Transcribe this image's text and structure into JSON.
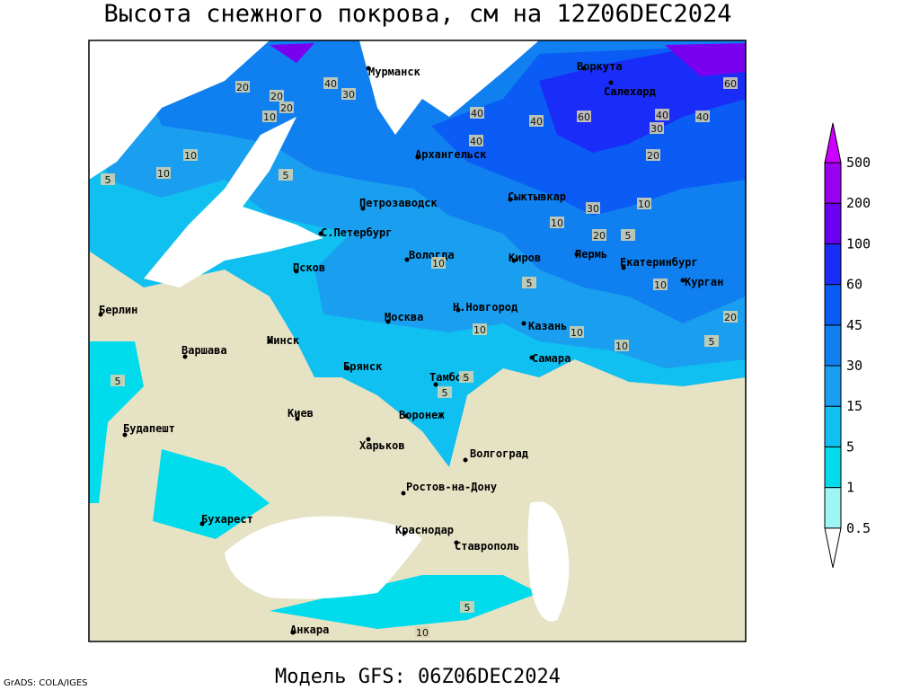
{
  "header": {
    "title": "Высота снежного покрова, см на 12Z06DEC2024"
  },
  "footer": {
    "model": "Модель GFS: 06Z06DEC2024",
    "credit": "GrADS: COLA/IGES"
  },
  "colorbar": {
    "levels": [
      0.5,
      1,
      5,
      15,
      30,
      45,
      60,
      100,
      200,
      500
    ],
    "colors": [
      "#ffffff",
      "#9ef5f5",
      "#00dcec",
      "#10c0f0",
      "#1a9ef0",
      "#1080f0",
      "#0a5cf4",
      "#1a2cf8",
      "#6a00f0",
      "#9a00f0",
      "#cc00ff"
    ]
  },
  "map": {
    "cities": [
      "Мурманск",
      "Воркута",
      "Салехард",
      "Архангельск",
      "Петрозаводск",
      "Сыктывкар",
      "С.Петербург",
      "Вологда",
      "Киров",
      "Пермь",
      "Екатеринбург",
      "Курган",
      "Псков",
      "Берлин",
      "Н.Новгород",
      "Москва",
      "Казань",
      "Минск",
      "Варшава",
      "Самара",
      "Брянск",
      "Тамбов",
      "Киев",
      "Воронеж",
      "Харьков",
      "Будапешт",
      "Волгоград",
      "Ростов-на-Дону",
      "Бухарест",
      "Краснодар",
      "Ставрополь",
      "Анкара"
    ],
    "contour_labels": [
      60,
      20,
      40,
      30,
      20,
      10,
      20,
      10,
      40,
      60,
      40,
      40,
      30,
      20,
      40,
      10,
      5,
      40,
      10,
      30,
      20,
      5,
      10,
      5,
      10,
      20,
      10,
      5,
      5,
      10,
      10,
      5,
      10,
      5,
      5,
      5,
      10
    ]
  }
}
